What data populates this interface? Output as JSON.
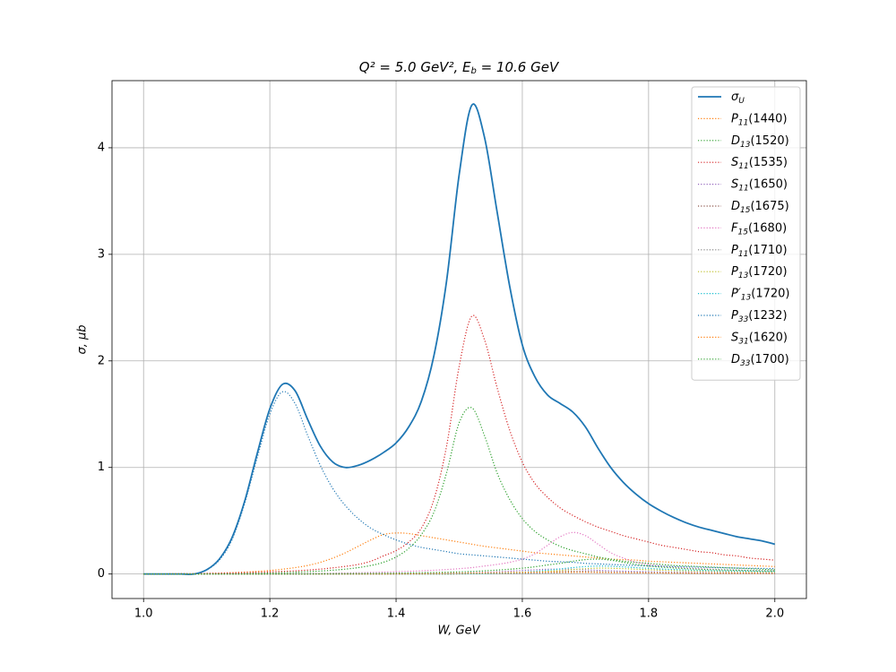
{
  "chart_data": {
    "type": "line",
    "title": "Q² = 5.0 GeV²,  Eb = 10.6 GeV",
    "x_label": "W, GeV",
    "y_label": "σ, μb",
    "xlim": [
      0.95,
      2.05
    ],
    "ylim": [
      -0.23,
      4.63
    ],
    "xticks": [
      {
        "value": 1,
        "label": "1.0"
      },
      {
        "value": 1.2,
        "label": "1.2"
      },
      {
        "value": 1.4,
        "label": "1.4"
      },
      {
        "value": 1.6,
        "label": "1.6"
      },
      {
        "value": 1.8,
        "label": "1.8"
      },
      {
        "value": 2,
        "label": "2.0"
      }
    ],
    "yticks": [
      0,
      1,
      2,
      3,
      4
    ],
    "grid": true,
    "legend": "upper right",
    "x": [
      1,
      1.02,
      1.04,
      1.06,
      1.08,
      1.1,
      1.12,
      1.14,
      1.16,
      1.18,
      1.2,
      1.22,
      1.24,
      1.26,
      1.28,
      1.3,
      1.32,
      1.34,
      1.36,
      1.38,
      1.4,
      1.42,
      1.44,
      1.46,
      1.48,
      1.5,
      1.52,
      1.54,
      1.56,
      1.58,
      1.6,
      1.62,
      1.64,
      1.66,
      1.68,
      1.7,
      1.72,
      1.74,
      1.76,
      1.78,
      1.8,
      1.82,
      1.84,
      1.86,
      1.88,
      1.9,
      1.92,
      1.94,
      1.96,
      1.98,
      2
    ],
    "series": [
      {
        "name": "σU",
        "color": "#1f77b4",
        "linestyle": "solid",
        "values": [
          0,
          0,
          0,
          0,
          0,
          0.04,
          0.14,
          0.34,
          0.68,
          1.13,
          1.55,
          1.78,
          1.72,
          1.45,
          1.2,
          1.05,
          1.0,
          1.02,
          1.07,
          1.14,
          1.23,
          1.38,
          1.62,
          2.05,
          2.75,
          3.75,
          4.4,
          4.1,
          3.4,
          2.7,
          2.15,
          1.85,
          1.68,
          1.6,
          1.52,
          1.38,
          1.18,
          1.0,
          0.86,
          0.75,
          0.66,
          0.59,
          0.53,
          0.48,
          0.44,
          0.41,
          0.38,
          0.35,
          0.33,
          0.31,
          0.28
        ]
      },
      {
        "name": "P11(1440)",
        "color": "#ff7f0e",
        "linestyle": "dotted",
        "values": [
          0,
          0.001,
          0.002,
          0.003,
          0.004,
          0.006,
          0.009,
          0.013,
          0.018,
          0.025,
          0.033,
          0.045,
          0.06,
          0.08,
          0.11,
          0.15,
          0.2,
          0.26,
          0.32,
          0.37,
          0.385,
          0.38,
          0.36,
          0.34,
          0.32,
          0.3,
          0.28,
          0.26,
          0.245,
          0.23,
          0.215,
          0.2,
          0.19,
          0.18,
          0.17,
          0.16,
          0.15,
          0.14,
          0.135,
          0.13,
          0.12,
          0.115,
          0.11,
          0.105,
          0.1,
          0.095,
          0.09,
          0.085,
          0.08,
          0.075,
          0.07
        ]
      },
      {
        "name": "D13(1520)",
        "color": "#2ca02c",
        "linestyle": "dotted",
        "values": [
          0,
          0,
          0,
          0,
          0,
          0.001,
          0.002,
          0.003,
          0.005,
          0.007,
          0.01,
          0.013,
          0.017,
          0.022,
          0.028,
          0.036,
          0.046,
          0.06,
          0.08,
          0.11,
          0.16,
          0.24,
          0.37,
          0.58,
          0.95,
          1.42,
          1.56,
          1.3,
          0.95,
          0.7,
          0.52,
          0.4,
          0.32,
          0.26,
          0.22,
          0.19,
          0.16,
          0.14,
          0.12,
          0.11,
          0.1,
          0.09,
          0.08,
          0.075,
          0.07,
          0.065,
          0.06,
          0.055,
          0.05,
          0.045,
          0.04
        ]
      },
      {
        "name": "S11(1535)",
        "color": "#d62728",
        "linestyle": "dotted",
        "values": [
          0,
          0,
          0.001,
          0.002,
          0.003,
          0.005,
          0.007,
          0.01,
          0.013,
          0.016,
          0.02,
          0.025,
          0.03,
          0.037,
          0.046,
          0.058,
          0.072,
          0.09,
          0.12,
          0.17,
          0.22,
          0.3,
          0.43,
          0.7,
          1.2,
          1.95,
          2.42,
          2.2,
          1.75,
          1.35,
          1.05,
          0.85,
          0.72,
          0.62,
          0.55,
          0.49,
          0.44,
          0.4,
          0.36,
          0.33,
          0.3,
          0.27,
          0.25,
          0.23,
          0.21,
          0.2,
          0.18,
          0.17,
          0.15,
          0.14,
          0.13
        ]
      },
      {
        "name": "S11(1650)",
        "color": "#9467bd",
        "linestyle": "dotted",
        "values": [
          0,
          0,
          0,
          0,
          0,
          0,
          0,
          0,
          0,
          0,
          0,
          0,
          0,
          0,
          0,
          0,
          0,
          0,
          0,
          0,
          0.002,
          0.003,
          0.004,
          0.005,
          0.007,
          0.009,
          0.012,
          0.016,
          0.021,
          0.027,
          0.034,
          0.04,
          0.045,
          0.046,
          0.044,
          0.04,
          0.035,
          0.031,
          0.027,
          0.024,
          0.021,
          0.019,
          0.017,
          0.016,
          0.015,
          0.014,
          0.013,
          0.012,
          0.011,
          0.011,
          0.01
        ]
      },
      {
        "name": "D15(1675)",
        "color": "#8c564b",
        "linestyle": "dotted",
        "values": [
          0,
          0,
          0,
          0,
          0,
          0,
          0,
          0,
          0,
          0,
          0,
          0,
          0,
          0,
          0,
          0,
          0,
          0,
          0,
          0,
          0,
          0,
          0,
          0,
          0,
          0.001,
          0.002,
          0.003,
          0.005,
          0.008,
          0.012,
          0.016,
          0.02,
          0.023,
          0.025,
          0.024,
          0.021,
          0.018,
          0.015,
          0.013,
          0.011,
          0.01,
          0.009,
          0.008,
          0.007,
          0.006,
          0.006,
          0.005,
          0.005,
          0.005,
          0.004
        ]
      },
      {
        "name": "F15(1680)",
        "color": "#e377c2",
        "linestyle": "dotted",
        "values": [
          0,
          0,
          0,
          0,
          0,
          0,
          0,
          0,
          0,
          0,
          0.002,
          0.003,
          0.004,
          0.005,
          0.006,
          0.008,
          0.01,
          0.012,
          0.015,
          0.018,
          0.021,
          0.025,
          0.03,
          0.035,
          0.042,
          0.05,
          0.06,
          0.075,
          0.09,
          0.11,
          0.14,
          0.19,
          0.27,
          0.35,
          0.39,
          0.36,
          0.28,
          0.2,
          0.15,
          0.11,
          0.09,
          0.075,
          0.065,
          0.055,
          0.05,
          0.045,
          0.04,
          0.037,
          0.034,
          0.031,
          0.03
        ]
      },
      {
        "name": "P11(1710)",
        "color": "#7f7f7f",
        "linestyle": "dotted",
        "values": [
          0,
          0,
          0,
          0,
          0,
          0,
          0,
          0,
          0,
          0,
          0,
          0,
          0,
          0,
          0,
          0,
          0,
          0,
          0,
          0,
          0,
          0,
          0,
          0,
          0,
          0.001,
          0.001,
          0.002,
          0.003,
          0.004,
          0.005,
          0.007,
          0.009,
          0.011,
          0.013,
          0.015,
          0.016,
          0.016,
          0.015,
          0.014,
          0.013,
          0.012,
          0.011,
          0.01,
          0.009,
          0.009,
          0.008,
          0.008,
          0.007,
          0.007,
          0.006
        ]
      },
      {
        "name": "P13(1720)",
        "color": "#bcbd22",
        "linestyle": "dotted",
        "values": [
          0,
          0,
          0,
          0,
          0,
          0,
          0,
          0,
          0,
          0,
          0,
          0,
          0,
          0,
          0,
          0,
          0,
          0,
          0,
          0,
          0,
          0,
          0,
          0,
          0,
          0.002,
          0.003,
          0.004,
          0.006,
          0.009,
          0.013,
          0.018,
          0.025,
          0.033,
          0.042,
          0.05,
          0.055,
          0.054,
          0.05,
          0.045,
          0.04,
          0.036,
          0.032,
          0.029,
          0.027,
          0.025,
          0.023,
          0.022,
          0.021,
          0.02,
          0.019
        ]
      },
      {
        "name": "P′13(1720)",
        "color": "#17becf",
        "linestyle": "dotted",
        "values": [
          0,
          0,
          0,
          0,
          0,
          0,
          0,
          0,
          0,
          0,
          0,
          0,
          0,
          0,
          0,
          0,
          0,
          0,
          0,
          0,
          0,
          0,
          0,
          0,
          0,
          0.002,
          0.003,
          0.005,
          0.008,
          0.012,
          0.018,
          0.026,
          0.036,
          0.048,
          0.06,
          0.07,
          0.075,
          0.073,
          0.067,
          0.06,
          0.053,
          0.047,
          0.042,
          0.038,
          0.035,
          0.032,
          0.03,
          0.028,
          0.027,
          0.025,
          0.024
        ]
      },
      {
        "name": "P33(1232)",
        "color": "#1f77b4",
        "linestyle": "dotted",
        "values": [
          0,
          0,
          0,
          0,
          0,
          0.04,
          0.13,
          0.32,
          0.66,
          1.09,
          1.5,
          1.71,
          1.6,
          1.3,
          1.02,
          0.8,
          0.64,
          0.52,
          0.43,
          0.37,
          0.32,
          0.28,
          0.25,
          0.23,
          0.21,
          0.19,
          0.18,
          0.17,
          0.16,
          0.15,
          0.14,
          0.13,
          0.12,
          0.115,
          0.11,
          0.1,
          0.095,
          0.09,
          0.085,
          0.08,
          0.077,
          0.073,
          0.07,
          0.067,
          0.064,
          0.061,
          0.058,
          0.056,
          0.054,
          0.052,
          0.05
        ]
      },
      {
        "name": "S31(1620)",
        "color": "#ff7f0e",
        "linestyle": "dotted",
        "values": [
          0,
          0,
          0,
          0,
          0,
          0,
          0,
          0,
          0,
          0,
          0,
          0,
          0,
          0,
          0,
          0,
          0,
          0,
          0,
          0,
          0.001,
          0.002,
          0.003,
          0.004,
          0.005,
          0.007,
          0.009,
          0.011,
          0.013,
          0.015,
          0.017,
          0.018,
          0.018,
          0.017,
          0.016,
          0.015,
          0.014,
          0.013,
          0.012,
          0.011,
          0.01,
          0.01,
          0.009,
          0.009,
          0.008,
          0.008,
          0.007,
          0.007,
          0.007,
          0.006,
          0.006
        ]
      },
      {
        "name": "D33(1700)",
        "color": "#2ca02c",
        "linestyle": "dotted",
        "values": [
          0,
          0,
          0,
          0,
          0,
          0,
          0,
          0,
          0,
          0,
          0.001,
          0.001,
          0.002,
          0.002,
          0.003,
          0.003,
          0.004,
          0.005,
          0.006,
          0.007,
          0.008,
          0.01,
          0.012,
          0.014,
          0.017,
          0.02,
          0.024,
          0.03,
          0.037,
          0.045,
          0.055,
          0.068,
          0.085,
          0.1,
          0.12,
          0.135,
          0.14,
          0.13,
          0.11,
          0.09,
          0.075,
          0.065,
          0.057,
          0.05,
          0.045,
          0.041,
          0.038,
          0.035,
          0.032,
          0.03,
          0.028
        ]
      }
    ]
  }
}
